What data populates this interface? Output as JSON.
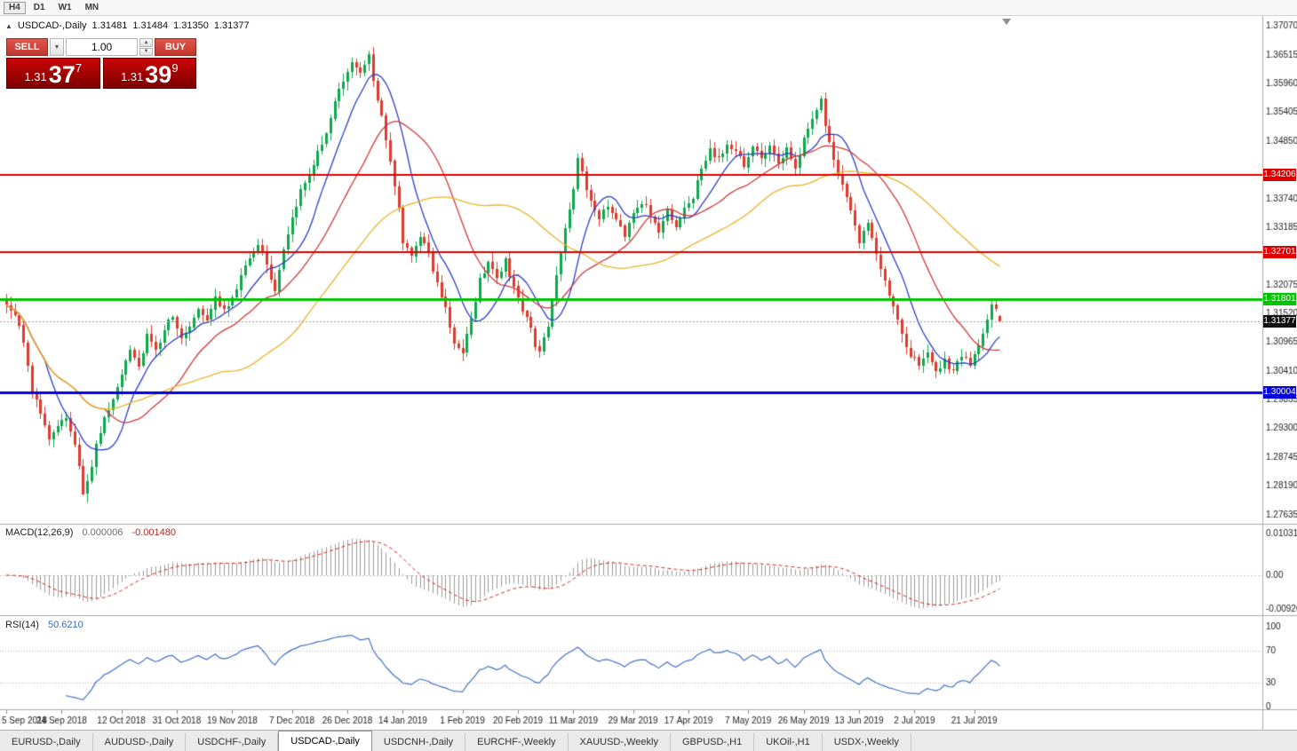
{
  "toolbar": {
    "timeframes": [
      {
        "label": "H4"
      },
      {
        "label": "D1"
      },
      {
        "label": "W1"
      },
      {
        "label": "MN"
      }
    ],
    "highlighted": "H4"
  },
  "icons": {
    "collapse_arrow": "▲",
    "dropdown_arrow": "▼",
    "spin_up": "▲",
    "spin_down": "▼"
  },
  "main_chart": {
    "header": {
      "symbol": "USDCAD-,Daily",
      "open": "1.31481",
      "high": "1.31484",
      "low": "1.31350",
      "close": "1.31377"
    }
  },
  "one_click": {
    "sell_label": "SELL",
    "buy_label": "BUY",
    "volume": "1.00",
    "sell_price": {
      "prefix": "1.31",
      "big": "37",
      "sup": "7"
    },
    "buy_price": {
      "prefix": "1.31",
      "big": "39",
      "sup": "9"
    }
  },
  "levels": [
    {
      "value": 1.34206,
      "label": "1.34206",
      "color": "#e00000",
      "width": 2
    },
    {
      "value": 1.32701,
      "label": "1.32701",
      "color": "#e00000",
      "width": 2
    },
    {
      "value": 1.31801,
      "label": "1.31801",
      "color": "#00c400",
      "width": 3
    },
    {
      "value": 1.30004,
      "label": "1.30004",
      "color": "#0000dd",
      "width": 3
    }
  ],
  "current_price": {
    "value": 1.31377,
    "label": "1.31377"
  },
  "indicators": {
    "macd": {
      "name": "MACD(12,26,9)",
      "value_main": "0.000006",
      "value_signal": "-0.001480",
      "axis_labels": [
        "0.010311",
        "0.00",
        "-0.00920"
      ]
    },
    "rsi": {
      "name": "RSI(14)",
      "value": "50.6210",
      "axis_labels": [
        {
          "value": 100,
          "label": "100"
        },
        {
          "value": 70,
          "label": "70"
        },
        {
          "value": 30,
          "label": "30"
        },
        {
          "value": 0,
          "label": "0"
        }
      ]
    }
  },
  "tabs": {
    "active": "USDCAD-,Daily",
    "items": [
      {
        "label": "EURUSD-,Daily"
      },
      {
        "label": "AUDUSD-,Daily"
      },
      {
        "label": "USDCHF-,Daily"
      },
      {
        "label": "USDCAD-,Daily"
      },
      {
        "label": "USDCNH-,Daily"
      },
      {
        "label": "EURCHF-,Weekly"
      },
      {
        "label": "XAUUSD-,Weekly"
      },
      {
        "label": "GBPUSD-,H1"
      },
      {
        "label": "UKOil-,H1"
      },
      {
        "label": "USDX-,Weekly"
      }
    ]
  },
  "colors": {
    "bull": "#0fa84e",
    "bear": "#dc3b30",
    "macd_hist": "#9b9b9b",
    "macd_signal": "#cc2a2a",
    "rsi_line": "#4472c4"
  },
  "chart_data": {
    "type": "candlestick",
    "title": "USDCAD-,Daily",
    "bar_count": 234,
    "y_axis": {
      "min": 1.2746,
      "max": 1.3727,
      "tick_start": 1.27635,
      "tick_step": 0.00555,
      "decimals": 5
    },
    "x_ticks": [
      {
        "label": "5 Sep 2018",
        "i": 0
      },
      {
        "label": "24 Sep 2018",
        "i": 13
      },
      {
        "label": "12 Oct 2018",
        "i": 27
      },
      {
        "label": "31 Oct 2018",
        "i": 40
      },
      {
        "label": "19 Nov 2018",
        "i": 53
      },
      {
        "label": "7 Dec 2018",
        "i": 67
      },
      {
        "label": "26 Dec 2018",
        "i": 80
      },
      {
        "label": "14 Jan 2019",
        "i": 93
      },
      {
        "label": "1 Feb 2019",
        "i": 107
      },
      {
        "label": "20 Feb 2019",
        "i": 120
      },
      {
        "label": "11 Mar 2019",
        "i": 133
      },
      {
        "label": "29 Mar 2019",
        "i": 147
      },
      {
        "label": "17 Apr 2019",
        "i": 160
      },
      {
        "label": "7 May 2019",
        "i": 174
      },
      {
        "label": "26 May 2019",
        "i": 187
      },
      {
        "label": "13 Jun 2019",
        "i": 200
      },
      {
        "label": "2 Jul 2019",
        "i": 213
      },
      {
        "label": "21 Jul 2019",
        "i": 227
      }
    ],
    "anchors": [
      [
        0,
        1.317
      ],
      [
        2,
        1.3152
      ],
      [
        4,
        1.31
      ],
      [
        6,
        1.2998
      ],
      [
        8,
        1.2962
      ],
      [
        10,
        1.2905
      ],
      [
        12,
        1.2932
      ],
      [
        14,
        1.295
      ],
      [
        16,
        1.2898
      ],
      [
        17,
        1.2852
      ],
      [
        18,
        1.2806
      ],
      [
        19,
        1.2828
      ],
      [
        21,
        1.2895
      ],
      [
        23,
        1.2948
      ],
      [
        25,
        1.2985
      ],
      [
        27,
        1.3032
      ],
      [
        29,
        1.3078
      ],
      [
        31,
        1.3052
      ],
      [
        33,
        1.3108
      ],
      [
        35,
        1.3078
      ],
      [
        37,
        1.3122
      ],
      [
        39,
        1.3145
      ],
      [
        41,
        1.3108
      ],
      [
        43,
        1.3132
      ],
      [
        45,
        1.3162
      ],
      [
        47,
        1.3138
      ],
      [
        49,
        1.3182
      ],
      [
        51,
        1.3158
      ],
      [
        53,
        1.3178
      ],
      [
        55,
        1.3222
      ],
      [
        57,
        1.3262
      ],
      [
        59,
        1.3288
      ],
      [
        61,
        1.3242
      ],
      [
        63,
        1.3195
      ],
      [
        65,
        1.3272
      ],
      [
        67,
        1.3332
      ],
      [
        69,
        1.3388
      ],
      [
        71,
        1.3422
      ],
      [
        73,
        1.3468
      ],
      [
        75,
        1.3502
      ],
      [
        77,
        1.3558
      ],
      [
        79,
        1.3602
      ],
      [
        81,
        1.3642
      ],
      [
        83,
        1.3618
      ],
      [
        85,
        1.3655
      ],
      [
        86,
        1.3602
      ],
      [
        88,
        1.3532
      ],
      [
        90,
        1.3442
      ],
      [
        92,
        1.3362
      ],
      [
        93,
        1.3288
      ],
      [
        95,
        1.3258
      ],
      [
        97,
        1.3302
      ],
      [
        99,
        1.3268
      ],
      [
        101,
        1.3212
      ],
      [
        103,
        1.3158
      ],
      [
        105,
        1.3098
      ],
      [
        107,
        1.3082
      ],
      [
        109,
        1.3142
      ],
      [
        111,
        1.3218
      ],
      [
        113,
        1.3248
      ],
      [
        115,
        1.3222
      ],
      [
        117,
        1.3252
      ],
      [
        119,
        1.3202
      ],
      [
        121,
        1.3162
      ],
      [
        123,
        1.3118
      ],
      [
        125,
        1.3072
      ],
      [
        127,
        1.3128
      ],
      [
        129,
        1.3228
      ],
      [
        131,
        1.3322
      ],
      [
        133,
        1.3398
      ],
      [
        134,
        1.3448
      ],
      [
        135,
        1.3422
      ],
      [
        137,
        1.3372
      ],
      [
        139,
        1.3332
      ],
      [
        141,
        1.3362
      ],
      [
        143,
        1.3332
      ],
      [
        145,
        1.3302
      ],
      [
        147,
        1.3342
      ],
      [
        149,
        1.3368
      ],
      [
        151,
        1.3342
      ],
      [
        153,
        1.3312
      ],
      [
        155,
        1.3348
      ],
      [
        157,
        1.3322
      ],
      [
        159,
        1.3352
      ],
      [
        161,
        1.3378
      ],
      [
        163,
        1.3432
      ],
      [
        165,
        1.3468
      ],
      [
        167,
        1.3448
      ],
      [
        169,
        1.3482
      ],
      [
        171,
        1.3462
      ],
      [
        173,
        1.3438
      ],
      [
        175,
        1.3472
      ],
      [
        177,
        1.3452
      ],
      [
        179,
        1.3478
      ],
      [
        181,
        1.3442
      ],
      [
        183,
        1.3468
      ],
      [
        185,
        1.3432
      ],
      [
        187,
        1.3492
      ],
      [
        189,
        1.3532
      ],
      [
        191,
        1.3562
      ],
      [
        192,
        1.3518
      ],
      [
        194,
        1.3452
      ],
      [
        196,
        1.3402
      ],
      [
        198,
        1.3348
      ],
      [
        200,
        1.3292
      ],
      [
        202,
        1.3322
      ],
      [
        204,
        1.3262
      ],
      [
        206,
        1.3212
      ],
      [
        208,
        1.3172
      ],
      [
        210,
        1.3112
      ],
      [
        212,
        1.3072
      ],
      [
        214,
        1.3058
      ],
      [
        216,
        1.3082
      ],
      [
        218,
        1.3042
      ],
      [
        220,
        1.3062
      ],
      [
        222,
        1.3035
      ],
      [
        224,
        1.3072
      ],
      [
        226,
        1.3052
      ],
      [
        228,
        1.3092
      ],
      [
        230,
        1.3142
      ],
      [
        231,
        1.3172
      ],
      [
        232,
        1.3162
      ],
      [
        233,
        1.31377
      ]
    ],
    "last_candle": {
      "o": 1.31481,
      "h": 1.31484,
      "l": 1.3135,
      "c": 1.31377
    },
    "moving_averages": [
      {
        "period": 10,
        "color": "#2e3fc8"
      },
      {
        "period": 24,
        "color": "#cf3a3a"
      },
      {
        "period": 52,
        "color": "#e9b42a"
      }
    ],
    "macd": {
      "fast": 12,
      "slow": 26,
      "signal": 9
    },
    "rsi": {
      "period": 14,
      "levels": [
        70,
        30
      ]
    }
  }
}
